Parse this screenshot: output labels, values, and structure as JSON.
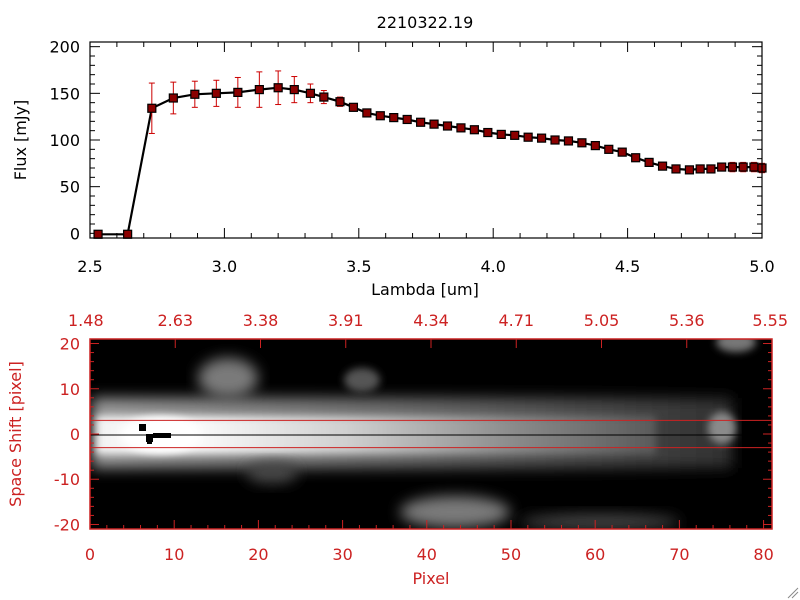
{
  "chart_data": [
    {
      "type": "line",
      "title": "2210322.19",
      "xlabel": "Lambda [um]",
      "ylabel": "Flux [mJy]",
      "xlim": [
        2.5,
        5.0
      ],
      "ylim": [
        -5,
        205
      ],
      "x_ticks": [
        "2.5",
        "3.0",
        "3.5",
        "4.0",
        "4.5",
        "5.0"
      ],
      "y_ticks": [
        "0",
        "50",
        "100",
        "150",
        "200"
      ],
      "colors": {
        "line": "#000000",
        "marker": "#8b0000",
        "errorbar": "#cc0000"
      },
      "series": [
        {
          "x": [
            2.53,
            2.64,
            2.73,
            2.81,
            2.89,
            2.97,
            3.05,
            3.13,
            3.2,
            3.26,
            3.32,
            3.37,
            3.43,
            3.48,
            3.53,
            3.58,
            3.63,
            3.68,
            3.73,
            3.78,
            3.83,
            3.88,
            3.93,
            3.98,
            4.03,
            4.08,
            4.13,
            4.18,
            4.23,
            4.28,
            4.33,
            4.38,
            4.43,
            4.48,
            4.53,
            4.58,
            4.63,
            4.68,
            4.73,
            4.77,
            4.81,
            4.85,
            4.89,
            4.93,
            4.97,
            5.0
          ],
          "y": [
            -1,
            -1,
            134,
            145,
            149,
            150,
            151,
            154,
            156,
            154,
            150,
            146,
            141,
            135,
            129,
            126,
            124,
            122,
            119,
            117,
            115,
            113,
            111,
            108,
            106,
            105,
            103,
            102,
            100,
            99,
            97,
            94,
            90,
            87,
            81,
            76,
            72,
            69,
            68,
            69,
            69,
            71,
            71,
            71,
            71,
            70
          ],
          "err": [
            0,
            0,
            27,
            17,
            14,
            14,
            16,
            19,
            18,
            14,
            10,
            7,
            5,
            4,
            3,
            3,
            3,
            3,
            2,
            2,
            2,
            2,
            2,
            2,
            2,
            2,
            2,
            2,
            2,
            2,
            2,
            2,
            2,
            2,
            2,
            2,
            2,
            2,
            2,
            2,
            3,
            4,
            5,
            5,
            5,
            5
          ]
        }
      ]
    },
    {
      "type": "heatmap",
      "xlabel": "Pixel",
      "ylabel": "Space Shift [pixel]",
      "xlim": [
        0,
        81
      ],
      "ylim": [
        -21,
        21
      ],
      "x_ticks": [
        "0",
        "10",
        "20",
        "30",
        "40",
        "50",
        "60",
        "70",
        "80"
      ],
      "y_ticks": [
        "20",
        "10",
        "0",
        "-10",
        "-20"
      ],
      "top_ticks": [
        "1.48",
        "2.63",
        "3.38",
        "3.91",
        "4.34",
        "4.71",
        "5.05",
        "5.36",
        "5.55"
      ],
      "extraction_lines": [
        3,
        -3
      ],
      "colors": {
        "axes": "#cc2222",
        "background": "#000000"
      }
    }
  ]
}
